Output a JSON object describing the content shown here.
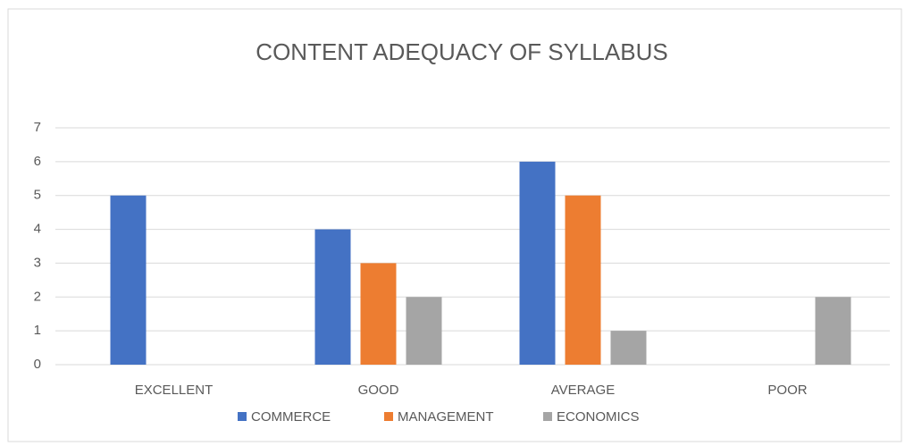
{
  "chart_data": {
    "type": "bar",
    "title": "CONTENT ADEQUACY OF SYLLABUS",
    "categories": [
      "EXCELLENT",
      "GOOD",
      "AVERAGE",
      "POOR"
    ],
    "series": [
      {
        "name": "COMMERCE",
        "color": "#4472c4",
        "values": [
          5,
          4,
          6,
          0
        ]
      },
      {
        "name": "MANAGEMENT",
        "color": "#ed7d31",
        "values": [
          0,
          3,
          5,
          0
        ]
      },
      {
        "name": "ECONOMICS",
        "color": "#a5a5a5",
        "values": [
          0,
          2,
          1,
          2
        ]
      }
    ],
    "ylim": [
      0,
      7
    ],
    "yticks": [
      0,
      1,
      2,
      3,
      4,
      5,
      6,
      7
    ],
    "grid": true,
    "legend": "bottom"
  }
}
